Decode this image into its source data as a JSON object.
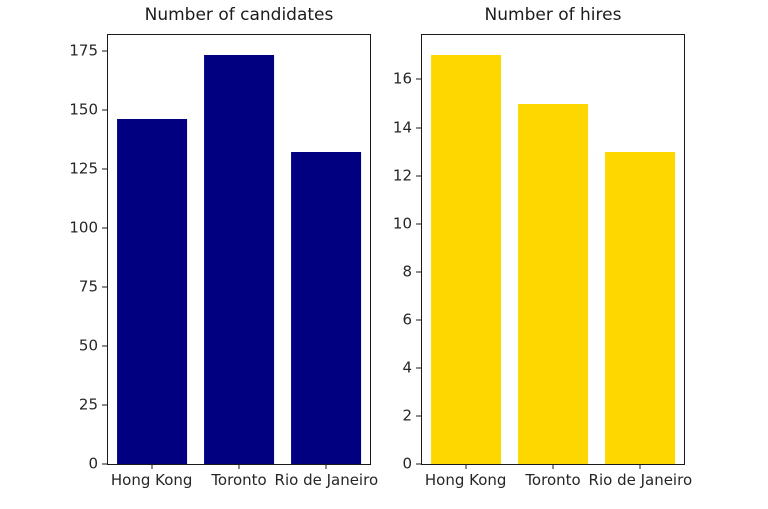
{
  "figure": {
    "background": "#ffffff",
    "text_color": "#262626",
    "spine_color": "#1a1a1a"
  },
  "chart_data": [
    {
      "type": "bar",
      "title": "Number of candidates",
      "categories": [
        "Hong Kong",
        "Toronto",
        "Rio de Janeiro"
      ],
      "values": [
        146,
        173,
        132
      ],
      "bar_color": "#000080",
      "bar_color_name": "navy",
      "xlabel": "",
      "ylabel": "",
      "ylim": [
        0,
        181.65
      ],
      "yticks": [
        0,
        25,
        50,
        75,
        100,
        125,
        150,
        175
      ],
      "bar_width_fraction": 0.8,
      "grid": false,
      "legend_position": "none"
    },
    {
      "type": "bar",
      "title": "Number of hires",
      "categories": [
        "Hong Kong",
        "Toronto",
        "Rio de Janeiro"
      ],
      "values": [
        17,
        15,
        13
      ],
      "bar_color": "#FFD700",
      "bar_color_name": "gold",
      "xlabel": "",
      "ylabel": "",
      "ylim": [
        0,
        17.85
      ],
      "yticks": [
        0,
        2,
        4,
        6,
        8,
        10,
        12,
        14,
        16
      ],
      "bar_width_fraction": 0.8,
      "grid": false,
      "legend_position": "none"
    }
  ]
}
